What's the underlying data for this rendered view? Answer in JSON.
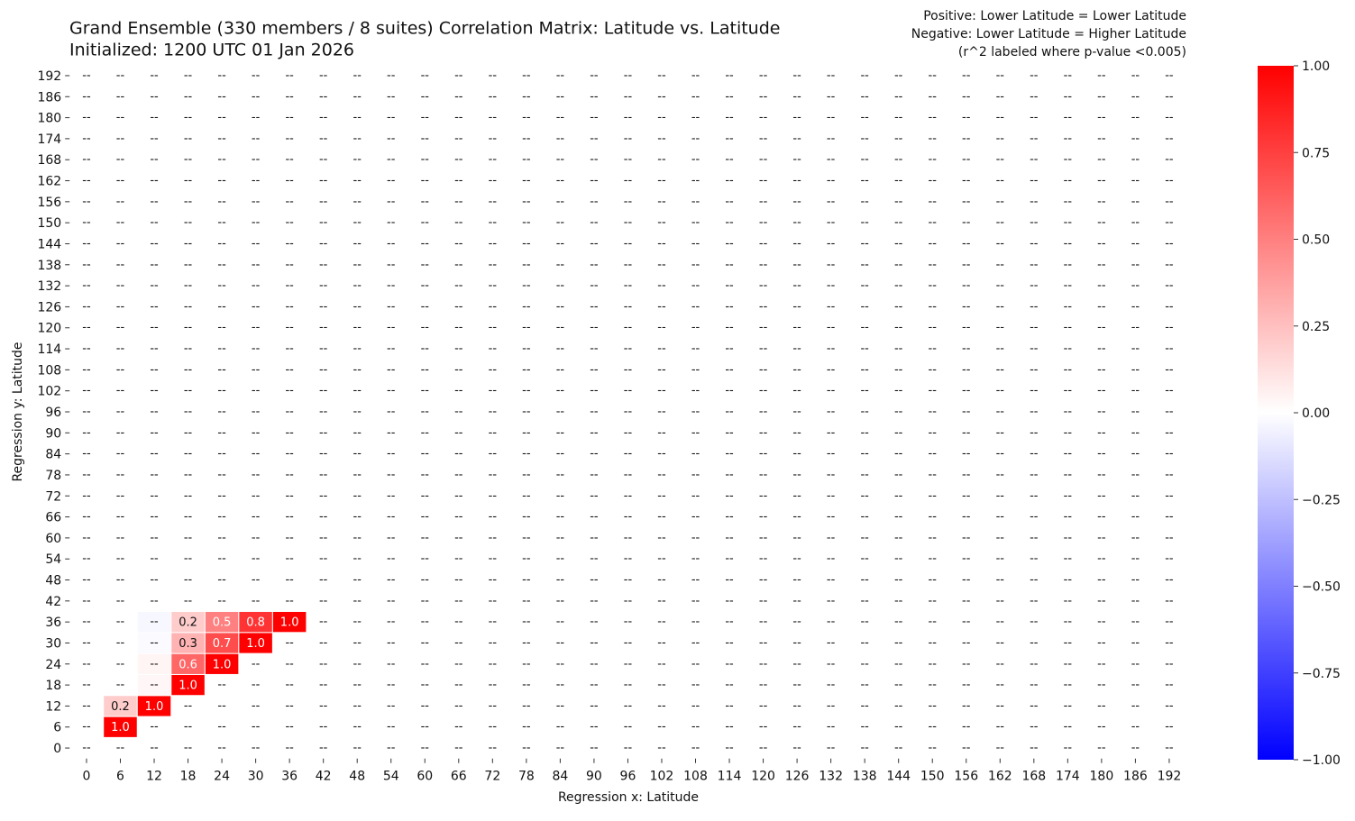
{
  "chart_data": {
    "type": "heatmap",
    "title": "Grand Ensemble (330 members / 8 suites) Correlation Matrix: Latitude vs. Latitude",
    "subtitle": "Initialized: 1200 UTC 01 Jan 2026",
    "annotations": [
      "Positive: Lower Latitude = Lower Latitude",
      "Negative: Lower Latitude = Higher Latitude",
      "(r^2 labeled where p-value <0.005)"
    ],
    "xlabel": "Regression x: Latitude",
    "ylabel": "Regression y: Latitude",
    "x": [
      0,
      6,
      12,
      18,
      24,
      30,
      36,
      42,
      48,
      54,
      60,
      66,
      72,
      78,
      84,
      90,
      96,
      102,
      108,
      114,
      120,
      126,
      132,
      138,
      144,
      150,
      156,
      162,
      168,
      174,
      180,
      186,
      192
    ],
    "y": [
      0,
      6,
      12,
      18,
      24,
      30,
      36,
      42,
      48,
      54,
      60,
      66,
      72,
      78,
      84,
      90,
      96,
      102,
      108,
      114,
      120,
      126,
      132,
      138,
      144,
      150,
      156,
      162,
      168,
      174,
      180,
      186,
      192
    ],
    "na_label": "--",
    "cells": [
      {
        "x": 6,
        "y": 6,
        "value": 1.0,
        "label": "1.0"
      },
      {
        "x": 6,
        "y": 12,
        "value": 0.2,
        "label": "0.2"
      },
      {
        "x": 12,
        "y": 12,
        "value": 1.0,
        "label": "1.0"
      },
      {
        "x": 12,
        "y": 18,
        "value": 0.03
      },
      {
        "x": 18,
        "y": 18,
        "value": 1.0,
        "label": "1.0"
      },
      {
        "x": 12,
        "y": 24,
        "value": 0.04
      },
      {
        "x": 18,
        "y": 24,
        "value": 0.6,
        "label": "0.6"
      },
      {
        "x": 24,
        "y": 24,
        "value": 1.0,
        "label": "1.0"
      },
      {
        "x": 12,
        "y": 30,
        "value": -0.02
      },
      {
        "x": 18,
        "y": 30,
        "value": 0.3,
        "label": "0.3"
      },
      {
        "x": 24,
        "y": 30,
        "value": 0.7,
        "label": "0.7"
      },
      {
        "x": 30,
        "y": 30,
        "value": 1.0,
        "label": "1.0"
      },
      {
        "x": 12,
        "y": 36,
        "value": -0.03
      },
      {
        "x": 18,
        "y": 36,
        "value": 0.2,
        "label": "0.2"
      },
      {
        "x": 24,
        "y": 36,
        "value": 0.5,
        "label": "0.5"
      },
      {
        "x": 30,
        "y": 36,
        "value": 0.8,
        "label": "0.8"
      },
      {
        "x": 36,
        "y": 36,
        "value": 1.0,
        "label": "1.0"
      }
    ],
    "cmap": [
      "#0000ff",
      "#ffffff",
      "#ff0000"
    ],
    "clim": [
      -1,
      1
    ],
    "cticks": [
      {
        "value": -1,
        "label": "−1.00"
      },
      {
        "value": -0.75,
        "label": "−0.75"
      },
      {
        "value": -0.5,
        "label": "−0.50"
      },
      {
        "value": -0.25,
        "label": "−0.25"
      },
      {
        "value": 0,
        "label": "0.00"
      },
      {
        "value": 0.25,
        "label": "0.25"
      },
      {
        "value": 0.5,
        "label": "0.50"
      },
      {
        "value": 0.75,
        "label": "0.75"
      },
      {
        "value": 1,
        "label": "1.00"
      }
    ]
  }
}
